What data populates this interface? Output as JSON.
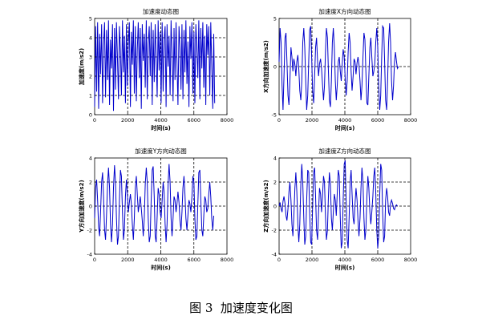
{
  "figure_caption": {
    "number": "图 3",
    "text": "加速度变化图"
  },
  "chart_data": [
    {
      "type": "line",
      "title": "加速度动态图",
      "xlabel": "时间(s)",
      "ylabel": "加速度(m/s2)",
      "xlim": [
        0,
        8000
      ],
      "ylim": [
        0,
        5
      ],
      "xticks": [
        0,
        2000,
        4000,
        6000,
        8000
      ],
      "yticks": [
        0,
        1,
        2,
        3,
        4,
        5
      ],
      "grid": "dashed",
      "line_color": "#0000cc",
      "series": [
        {
          "x": [
            0,
            60,
            120,
            180,
            240,
            300,
            360,
            420,
            480,
            540,
            600,
            660,
            720,
            780,
            840,
            900,
            960,
            1020,
            1080,
            1140,
            1200,
            1260,
            1320,
            1380,
            1440,
            1500,
            1560,
            1620,
            1680,
            1740,
            1800,
            1860,
            1920,
            1980,
            2040,
            2100,
            2160,
            2220,
            2280,
            2340,
            2400,
            2460,
            2520,
            2580,
            2640,
            2700,
            2760,
            2820,
            2880,
            2940,
            3000,
            3060,
            3120,
            3180,
            3240,
            3300,
            3360,
            3420,
            3480,
            3540,
            3600,
            3660,
            3720,
            3780,
            3840,
            3900,
            3960,
            4020,
            4080,
            4140,
            4200,
            4260,
            4320,
            4380,
            4440,
            4500,
            4560,
            4620,
            4680,
            4740,
            4800,
            4860,
            4920,
            4980,
            5040,
            5100,
            5160,
            5220,
            5280,
            5340,
            5400,
            5460,
            5520,
            5580,
            5640,
            5700,
            5760,
            5820,
            5880,
            5940,
            6000,
            6060,
            6120,
            6180,
            6240,
            6300,
            6360,
            6420,
            6480,
            6540,
            6600,
            6660,
            6720,
            6780,
            6840,
            6900,
            6960,
            7020,
            7080,
            7140,
            7200,
            7260
          ],
          "y": [
            0.4,
            4.6,
            1.2,
            4.8,
            0.3,
            4.2,
            2.1,
            4.7,
            0.6,
            3.6,
            4.8,
            0.9,
            4.4,
            1.8,
            4.9,
            0.5,
            3.9,
            2.4,
            4.7,
            0.2,
            4.5,
            1.3,
            4.8,
            2.9,
            0.8,
            4.6,
            3.3,
            1.0,
            4.9,
            2.2,
            4.1,
            0.6,
            4.7,
            1.5,
            3.8,
            4.8,
            0.4,
            4.3,
            2.6,
            4.9,
            1.1,
            4.6,
            0.7,
            3.4,
            4.8,
            1.9,
            4.5,
            0.3,
            4.7,
            2.8,
            4.2,
            1.4,
            4.9,
            0.8,
            3.7,
            4.6,
            2.0,
            4.8,
            0.5,
            4.4,
            1.7,
            4.7,
            3.0,
            0.9,
            4.9,
            2.3,
            4.3,
            0.6,
            4.8,
            1.2,
            3.9,
            4.6,
            0.4,
            4.7,
            2.5,
            4.1,
            1.0,
            4.9,
            3.2,
            0.7,
            4.5,
            1.8,
            4.8,
            2.7,
            0.5,
            4.6,
            3.5,
            1.3,
            4.7,
            0.8,
            4.4,
            2.2,
            4.9,
            1.6,
            3.8,
            0.4,
            4.6,
            2.9,
            4.8,
            1.1,
            4.3,
            0.6,
            4.7,
            3.4,
            1.9,
            4.9,
            0.8,
            4.5,
            2.4,
            4.8,
            1.4,
            4.1,
            0.5,
            4.7,
            3.1,
            4.6,
            1.0,
            4.8,
            2.6,
            0.3,
            4.2,
            0.6
          ],
          "name": ""
        }
      ]
    },
    {
      "type": "line",
      "title": "加速度X方向动态图",
      "xlabel": "时间(s)",
      "ylabel": "X方向加速度(m/s2)",
      "xlim": [
        0,
        8000
      ],
      "ylim": [
        -5,
        5
      ],
      "xticks": [
        0,
        2000,
        4000,
        6000,
        8000
      ],
      "yticks": [
        -5,
        0,
        5
      ],
      "grid": "dashed",
      "line_color": "#0000cc",
      "series": [
        {
          "x": [
            0,
            60,
            120,
            180,
            240,
            300,
            360,
            420,
            480,
            540,
            600,
            660,
            720,
            780,
            840,
            900,
            960,
            1020,
            1080,
            1140,
            1200,
            1260,
            1320,
            1380,
            1440,
            1500,
            1560,
            1620,
            1680,
            1740,
            1800,
            1860,
            1920,
            1980,
            2040,
            2100,
            2160,
            2220,
            2280,
            2340,
            2400,
            2460,
            2520,
            2580,
            2640,
            2700,
            2760,
            2820,
            2880,
            2940,
            3000,
            3060,
            3120,
            3180,
            3240,
            3300,
            3360,
            3420,
            3480,
            3540,
            3600,
            3660,
            3720,
            3780,
            3840,
            3900,
            3960,
            4020,
            4080,
            4140,
            4200,
            4260,
            4320,
            4380,
            4440,
            4500,
            4560,
            4620,
            4680,
            4740,
            4800,
            4860,
            4920,
            4980,
            5040,
            5100,
            5160,
            5220,
            5280,
            5340,
            5400,
            5460,
            5520,
            5580,
            5640,
            5700,
            5760,
            5820,
            5880,
            5940,
            6000,
            6060,
            6120,
            6180,
            6240,
            6300,
            6360,
            6420,
            6480,
            6540,
            6600,
            6660,
            6720,
            6780,
            6840,
            6900,
            6960,
            7020,
            7080,
            7140,
            7200,
            7260
          ],
          "y": [
            0.5,
            4.0,
            2.5,
            -2.0,
            -4.5,
            -1.0,
            3.0,
            3.5,
            0.5,
            -3.0,
            -4.0,
            -1.5,
            2.0,
            1.0,
            -0.5,
            0.8,
            0.2,
            -1.0,
            0.5,
            1.2,
            -0.3,
            -2.5,
            -3.5,
            -1.5,
            2.5,
            4.0,
            2.0,
            -1.5,
            -4.5,
            -3.0,
            0.5,
            3.8,
            4.2,
            1.0,
            -2.5,
            -3.8,
            -1.0,
            2.0,
            3.0,
            0.5,
            -1.0,
            0.3,
            0.8,
            -0.2,
            -1.8,
            -3.5,
            -2.0,
            1.5,
            4.0,
            3.0,
            -0.5,
            -3.5,
            -4.2,
            -1.5,
            2.5,
            4.0,
            2.0,
            -1.5,
            -3.5,
            -1.8,
            0.5,
            1.0,
            -0.5,
            -1.5,
            0.3,
            1.8,
            1.0,
            -1.2,
            -3.0,
            -1.5,
            1.5,
            3.5,
            2.5,
            -0.5,
            -2.5,
            -1.0,
            0.8,
            0.5,
            -0.8,
            0.4,
            1.0,
            0.2,
            -1.5,
            -3.5,
            -2.0,
            1.0,
            3.5,
            2.8,
            -0.5,
            -3.8,
            -4.0,
            -1.0,
            2.0,
            3.0,
            1.0,
            -1.0,
            -0.5,
            0.3,
            2.5,
            4.0,
            2.0,
            -2.0,
            -4.5,
            -3.0,
            1.0,
            4.2,
            4.0,
            0.5,
            -3.5,
            -4.5,
            -1.5,
            2.5,
            4.5,
            2.5,
            -1.5,
            -3.5,
            -2.0,
            0.5,
            1.5,
            0.5,
            -0.2,
            0.0
          ],
          "name": ""
        }
      ]
    },
    {
      "type": "line",
      "title": "加速度Y方向动态图",
      "xlabel": "时间(s)",
      "ylabel": "Y方向加速度(m/s2)",
      "xlim": [
        0,
        8000
      ],
      "ylim": [
        -4,
        4
      ],
      "xticks": [
        0,
        2000,
        4000,
        6000,
        8000
      ],
      "yticks": [
        -4,
        -2,
        0,
        2,
        4
      ],
      "grid": "dashed",
      "line_color": "#0000cc",
      "series": [
        {
          "x": [
            0,
            60,
            120,
            180,
            240,
            300,
            360,
            420,
            480,
            540,
            600,
            660,
            720,
            780,
            840,
            900,
            960,
            1020,
            1080,
            1140,
            1200,
            1260,
            1320,
            1380,
            1440,
            1500,
            1560,
            1620,
            1680,
            1740,
            1800,
            1860,
            1920,
            1980,
            2040,
            2100,
            2160,
            2220,
            2280,
            2340,
            2400,
            2460,
            2520,
            2580,
            2640,
            2700,
            2760,
            2820,
            2880,
            2940,
            3000,
            3060,
            3120,
            3180,
            3240,
            3300,
            3360,
            3420,
            3480,
            3540,
            3600,
            3660,
            3720,
            3780,
            3840,
            3900,
            3960,
            4020,
            4080,
            4140,
            4200,
            4260,
            4320,
            4380,
            4440,
            4500,
            4560,
            4620,
            4680,
            4740,
            4800,
            4860,
            4920,
            4980,
            5040,
            5100,
            5160,
            5220,
            5280,
            5340,
            5400,
            5460,
            5520,
            5580,
            5640,
            5700,
            5760,
            5820,
            5880,
            5940,
            6000,
            6060,
            6120,
            6180,
            6240,
            6300,
            6360,
            6420,
            6480,
            6540,
            6600,
            6660,
            6720,
            6780,
            6840,
            6900,
            6960,
            7020,
            7080,
            7140,
            7200
          ],
          "y": [
            -1.0,
            1.5,
            2.2,
            0.5,
            -1.8,
            -2.5,
            -0.5,
            2.0,
            2.8,
            0.8,
            -2.0,
            -2.8,
            -0.8,
            1.8,
            3.2,
            1.5,
            -1.5,
            -3.0,
            -1.5,
            1.5,
            3.4,
            2.0,
            -1.0,
            -3.2,
            -2.5,
            0.5,
            3.0,
            2.5,
            -0.5,
            -2.8,
            -2.0,
            0.8,
            2.2,
            1.0,
            -0.5,
            0.3,
            1.0,
            0.2,
            -1.5,
            -2.8,
            -1.0,
            1.5,
            2.5,
            1.0,
            -0.5,
            0.2,
            0.8,
            -0.2,
            -1.2,
            -2.5,
            -1.0,
            1.8,
            3.2,
            2.0,
            -1.0,
            -3.0,
            -2.5,
            0.5,
            3.0,
            3.3,
            0.8,
            -2.5,
            -3.0,
            -0.8,
            1.5,
            1.0,
            -0.5,
            -1.0,
            0.5,
            2.0,
            1.2,
            -1.5,
            -3.0,
            -1.5,
            1.8,
            3.5,
            2.0,
            -1.0,
            -2.5,
            -1.0,
            0.8,
            0.5,
            -0.5,
            0.2,
            1.2,
            0.3,
            -1.2,
            -2.0,
            -0.5,
            1.5,
            2.5,
            1.0,
            -1.0,
            -2.0,
            -0.8,
            0.5,
            0.2,
            -0.5,
            0.8,
            2.5,
            2.0,
            -1.0,
            -2.8,
            -2.5,
            0.2,
            2.8,
            3.0,
            0.5,
            -2.0,
            -2.5,
            -0.8,
            0.8,
            0.5,
            -0.5,
            -0.2,
            1.0,
            2.0,
            0.8,
            -1.0,
            -2.0,
            -0.8
          ],
          "name": ""
        }
      ]
    },
    {
      "type": "line",
      "title": "加速度Z方向动态图",
      "xlabel": "时间(s)",
      "ylabel": "Z方向加速度(m/s2)",
      "xlim": [
        0,
        8000
      ],
      "ylim": [
        -4,
        4
      ],
      "xticks": [
        0,
        2000,
        4000,
        6000,
        8000
      ],
      "yticks": [
        -4,
        -2,
        0,
        2,
        4
      ],
      "grid": "dashed",
      "line_color": "#0000cc",
      "series": [
        {
          "x": [
            0,
            60,
            120,
            180,
            240,
            300,
            360,
            420,
            480,
            540,
            600,
            660,
            720,
            780,
            840,
            900,
            960,
            1020,
            1080,
            1140,
            1200,
            1260,
            1320,
            1380,
            1440,
            1500,
            1560,
            1620,
            1680,
            1740,
            1800,
            1860,
            1920,
            1980,
            2040,
            2100,
            2160,
            2220,
            2280,
            2340,
            2400,
            2460,
            2520,
            2580,
            2640,
            2700,
            2760,
            2820,
            2880,
            2940,
            3000,
            3060,
            3120,
            3180,
            3240,
            3300,
            3360,
            3420,
            3480,
            3540,
            3600,
            3660,
            3720,
            3780,
            3840,
            3900,
            3960,
            4020,
            4080,
            4140,
            4200,
            4260,
            4320,
            4380,
            4440,
            4500,
            4560,
            4620,
            4680,
            4740,
            4800,
            4860,
            4920,
            4980,
            5040,
            5100,
            5160,
            5220,
            5280,
            5340,
            5400,
            5460,
            5520,
            5580,
            5640,
            5700,
            5760,
            5820,
            5880,
            5940,
            6000,
            6060,
            6120,
            6180,
            6240,
            6300,
            6360,
            6420,
            6480,
            6540,
            6600,
            6660,
            6720,
            6780,
            6840,
            6900,
            6960,
            7020,
            7080,
            7140,
            7200
          ],
          "y": [
            0.0,
            0.3,
            -0.2,
            -0.5,
            0.4,
            0.8,
            0.2,
            -0.8,
            -1.2,
            -0.2,
            1.2,
            2.0,
            0.5,
            -1.5,
            -2.5,
            -0.8,
            1.5,
            2.8,
            1.2,
            -1.5,
            -3.0,
            -1.5,
            1.8,
            3.5,
            2.0,
            -1.0,
            -3.2,
            -2.5,
            0.5,
            3.0,
            2.8,
            -0.5,
            -3.0,
            -3.2,
            0.0,
            2.8,
            3.2,
            0.8,
            -2.0,
            -2.8,
            -0.5,
            1.5,
            1.0,
            -0.5,
            0.8,
            2.5,
            2.0,
            -0.8,
            -2.8,
            -2.0,
            0.8,
            2.8,
            1.8,
            -1.0,
            -2.0,
            -0.5,
            1.0,
            0.5,
            -0.8,
            1.2,
            3.0,
            2.5,
            -1.0,
            -3.5,
            -3.0,
            0.5,
            3.5,
            3.8,
            0.5,
            -2.8,
            -3.5,
            -1.0,
            2.0,
            3.0,
            1.0,
            -1.0,
            -1.5,
            0.2,
            1.5,
            0.5,
            -1.2,
            -2.5,
            -1.0,
            1.5,
            3.2,
            2.0,
            -1.0,
            -2.8,
            -2.0,
            0.8,
            2.5,
            1.5,
            -0.5,
            -1.5,
            -0.5,
            0.8,
            2.5,
            3.2,
            1.2,
            -2.0,
            -3.5,
            -2.5,
            1.0,
            3.5,
            3.0,
            -0.5,
            -3.0,
            -2.5,
            0.5,
            1.5,
            0.8,
            -0.5,
            -0.8,
            0.2,
            0.5,
            0.2,
            -0.2,
            -0.3,
            0.0,
            0.1,
            0.0
          ],
          "name": ""
        }
      ]
    }
  ]
}
